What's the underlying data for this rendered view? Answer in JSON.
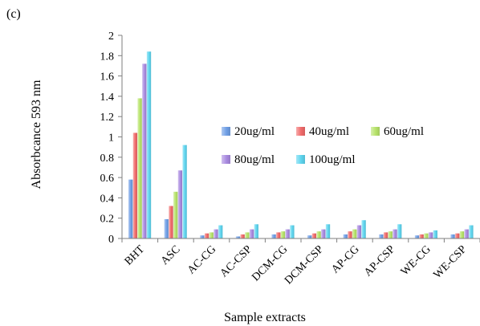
{
  "panel_label": "(c)",
  "chart_data": {
    "type": "bar",
    "title": "",
    "xlabel": "Sample extracts",
    "ylabel": "Absorbcance 593 nm",
    "ylim": [
      0,
      2
    ],
    "yticks": [
      0,
      0.2,
      0.4,
      0.6,
      0.8,
      1,
      1.2,
      1.4,
      1.6,
      1.8,
      2
    ],
    "grid": false,
    "legend_position": "right",
    "categories": [
      "BHT",
      "ASC",
      "AC-CG",
      "AC-CSP",
      "DCM-CG",
      "DCM-CSP",
      "AP-CG",
      "AP-CSP",
      "WE-CG",
      "WE-CSP"
    ],
    "series": [
      {
        "name": "20ug/ml",
        "color": "#6f9fe6",
        "values": [
          0.58,
          0.19,
          0.03,
          0.02,
          0.04,
          0.03,
          0.04,
          0.04,
          0.03,
          0.04
        ]
      },
      {
        "name": "40ug/ml",
        "color": "#f06a6a",
        "values": [
          1.04,
          0.32,
          0.05,
          0.04,
          0.06,
          0.05,
          0.07,
          0.06,
          0.04,
          0.05
        ]
      },
      {
        "name": "60ug/ml",
        "color": "#b7e36a",
        "values": [
          1.38,
          0.46,
          0.06,
          0.06,
          0.07,
          0.07,
          0.09,
          0.07,
          0.05,
          0.07
        ]
      },
      {
        "name": "80ug/ml",
        "color": "#a98ae0",
        "values": [
          1.72,
          0.67,
          0.09,
          0.09,
          0.09,
          0.09,
          0.13,
          0.09,
          0.06,
          0.09
        ]
      },
      {
        "name": "100ug/ml",
        "color": "#5ed5ef",
        "values": [
          1.84,
          0.92,
          0.13,
          0.14,
          0.13,
          0.14,
          0.18,
          0.14,
          0.08,
          0.13
        ]
      }
    ]
  }
}
